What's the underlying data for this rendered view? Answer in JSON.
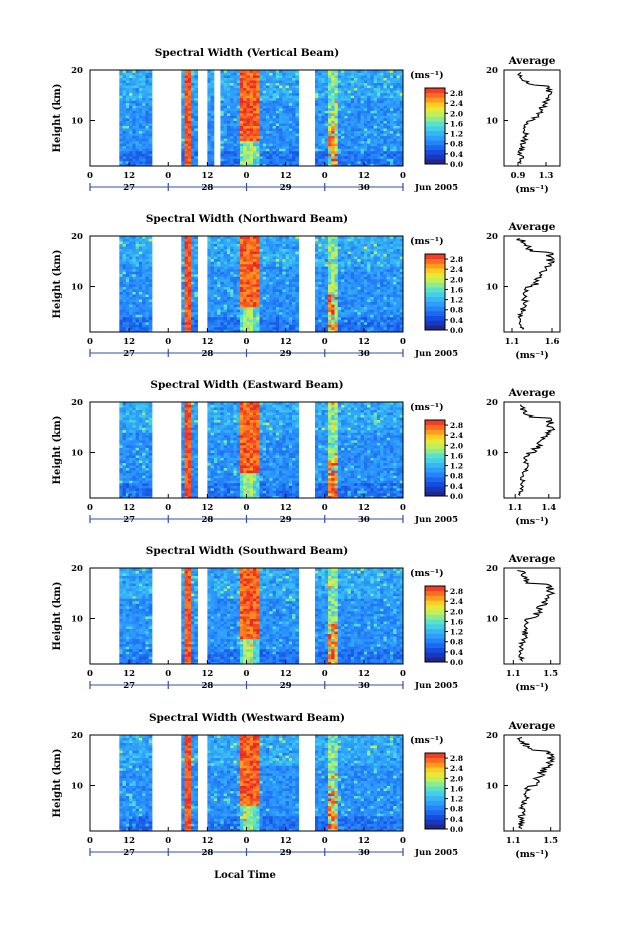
{
  "figure": {
    "xlabel": "Local Time",
    "month_label": "Jun 2005",
    "avg_title": "Average",
    "unit_label": "(ms⁻¹)",
    "ylabel": "Height (km)"
  },
  "chart_data": [
    {
      "type": "heatmap",
      "title": "Spectral Width (Vertical Beam)",
      "xlabel": "Local Time",
      "ylabel": "Height (km)",
      "x_ticks": [
        "0",
        "12",
        "0",
        "12",
        "0",
        "12",
        "0",
        "12",
        "0"
      ],
      "day_labels": [
        "27",
        "28",
        "29",
        "30"
      ],
      "ylim": [
        1,
        20
      ],
      "y_ticks": [
        "20",
        "10"
      ],
      "colorbar": {
        "unit": "(ms⁻¹)",
        "ticks": [
          "2.8",
          "2.4",
          "2.0",
          "1.6",
          "1.2",
          "0.8",
          "0.4",
          "0.0"
        ],
        "range": [
          0.0,
          3.0
        ]
      },
      "data_gaps_hours": [
        [
          0,
          9
        ],
        [
          19,
          28
        ],
        [
          33,
          36
        ],
        [
          38,
          40
        ],
        [
          64,
          69
        ]
      ],
      "average_profile": {
        "title": "Average",
        "xlabel": "(ms⁻¹)",
        "x_ticks": [
          "0.9",
          "1.3"
        ],
        "xlim": [
          0.7,
          1.5
        ],
        "y_ticks": [
          "20",
          "10"
        ]
      }
    },
    {
      "type": "heatmap",
      "title": "Spectral Width (Northward Beam)",
      "xlabel": "Local Time",
      "ylabel": "Height (km)",
      "x_ticks": [
        "0",
        "12",
        "0",
        "12",
        "0",
        "12",
        "0",
        "12",
        "0"
      ],
      "day_labels": [
        "27",
        "28",
        "29",
        "30"
      ],
      "ylim": [
        1,
        20
      ],
      "y_ticks": [
        "20",
        "10"
      ],
      "colorbar": {
        "unit": "(ms⁻¹)",
        "ticks": [
          "2.8",
          "2.4",
          "2.0",
          "1.6",
          "1.2",
          "0.8",
          "0.4",
          "0.0"
        ],
        "range": [
          0.0,
          3.0
        ]
      },
      "data_gaps_hours": [
        [
          0,
          9
        ],
        [
          19,
          28
        ],
        [
          33,
          36
        ],
        [
          64,
          69
        ]
      ],
      "average_profile": {
        "title": "Average",
        "xlabel": "(ms⁻¹)",
        "x_ticks": [
          "1.1",
          "1.6"
        ],
        "xlim": [
          1.0,
          1.7
        ],
        "y_ticks": [
          "20",
          "10"
        ]
      }
    },
    {
      "type": "heatmap",
      "title": "Spectral Width (Eastward Beam)",
      "xlabel": "Local Time",
      "ylabel": "Height (km)",
      "x_ticks": [
        "0",
        "12",
        "0",
        "12",
        "0",
        "12",
        "0",
        "12",
        "0"
      ],
      "day_labels": [
        "27",
        "28",
        "29",
        "30"
      ],
      "ylim": [
        1,
        20
      ],
      "y_ticks": [
        "20",
        "10"
      ],
      "colorbar": {
        "unit": "(ms⁻¹)",
        "ticks": [
          "2.8",
          "2.4",
          "2.0",
          "1.6",
          "1.2",
          "0.8",
          "0.4",
          "0.0"
        ],
        "range": [
          0.0,
          3.0
        ]
      },
      "data_gaps_hours": [
        [
          0,
          9
        ],
        [
          19,
          28
        ],
        [
          33,
          36
        ],
        [
          64,
          69
        ]
      ],
      "average_profile": {
        "title": "Average",
        "xlabel": "(ms⁻¹)",
        "x_ticks": [
          "1.1",
          "1.4"
        ],
        "xlim": [
          1.0,
          1.5
        ],
        "y_ticks": [
          "20",
          "10"
        ]
      }
    },
    {
      "type": "heatmap",
      "title": "Spectral Width (Southward Beam)",
      "xlabel": "Local Time",
      "ylabel": "Height (km)",
      "x_ticks": [
        "0",
        "12",
        "0",
        "12",
        "0",
        "12",
        "0",
        "12",
        "0"
      ],
      "day_labels": [
        "27",
        "28",
        "29",
        "30"
      ],
      "ylim": [
        1,
        20
      ],
      "y_ticks": [
        "20",
        "10"
      ],
      "colorbar": {
        "unit": "(ms⁻¹)",
        "ticks": [
          "2.8",
          "2.4",
          "2.0",
          "1.6",
          "1.2",
          "0.8",
          "0.4",
          "0.0"
        ],
        "range": [
          0.0,
          3.0
        ]
      },
      "data_gaps_hours": [
        [
          0,
          9
        ],
        [
          19,
          28
        ],
        [
          33,
          36
        ],
        [
          64,
          69
        ]
      ],
      "average_profile": {
        "title": "Average",
        "xlabel": "(ms⁻¹)",
        "x_ticks": [
          "1.1",
          "1.5"
        ],
        "xlim": [
          1.0,
          1.6
        ],
        "y_ticks": [
          "20",
          "10"
        ]
      }
    },
    {
      "type": "heatmap",
      "title": "Spectral Width (Westward Beam)",
      "xlabel": "Local Time",
      "ylabel": "Height (km)",
      "x_ticks": [
        "0",
        "12",
        "0",
        "12",
        "0",
        "12",
        "0",
        "12",
        "0"
      ],
      "day_labels": [
        "27",
        "28",
        "29",
        "30"
      ],
      "ylim": [
        1,
        20
      ],
      "y_ticks": [
        "20",
        "10"
      ],
      "colorbar": {
        "unit": "(ms⁻¹)",
        "ticks": [
          "2.8",
          "2.4",
          "2.0",
          "1.6",
          "1.2",
          "0.8",
          "0.4",
          "0.0"
        ],
        "range": [
          0.0,
          3.0
        ]
      },
      "data_gaps_hours": [
        [
          0,
          9
        ],
        [
          19,
          28
        ],
        [
          33,
          36
        ],
        [
          64,
          69
        ]
      ],
      "average_profile": {
        "title": "Average",
        "xlabel": "(ms⁻¹)",
        "x_ticks": [
          "1.1",
          "1.5"
        ],
        "xlim": [
          1.0,
          1.6
        ],
        "y_ticks": [
          "20",
          "10"
        ]
      }
    }
  ]
}
